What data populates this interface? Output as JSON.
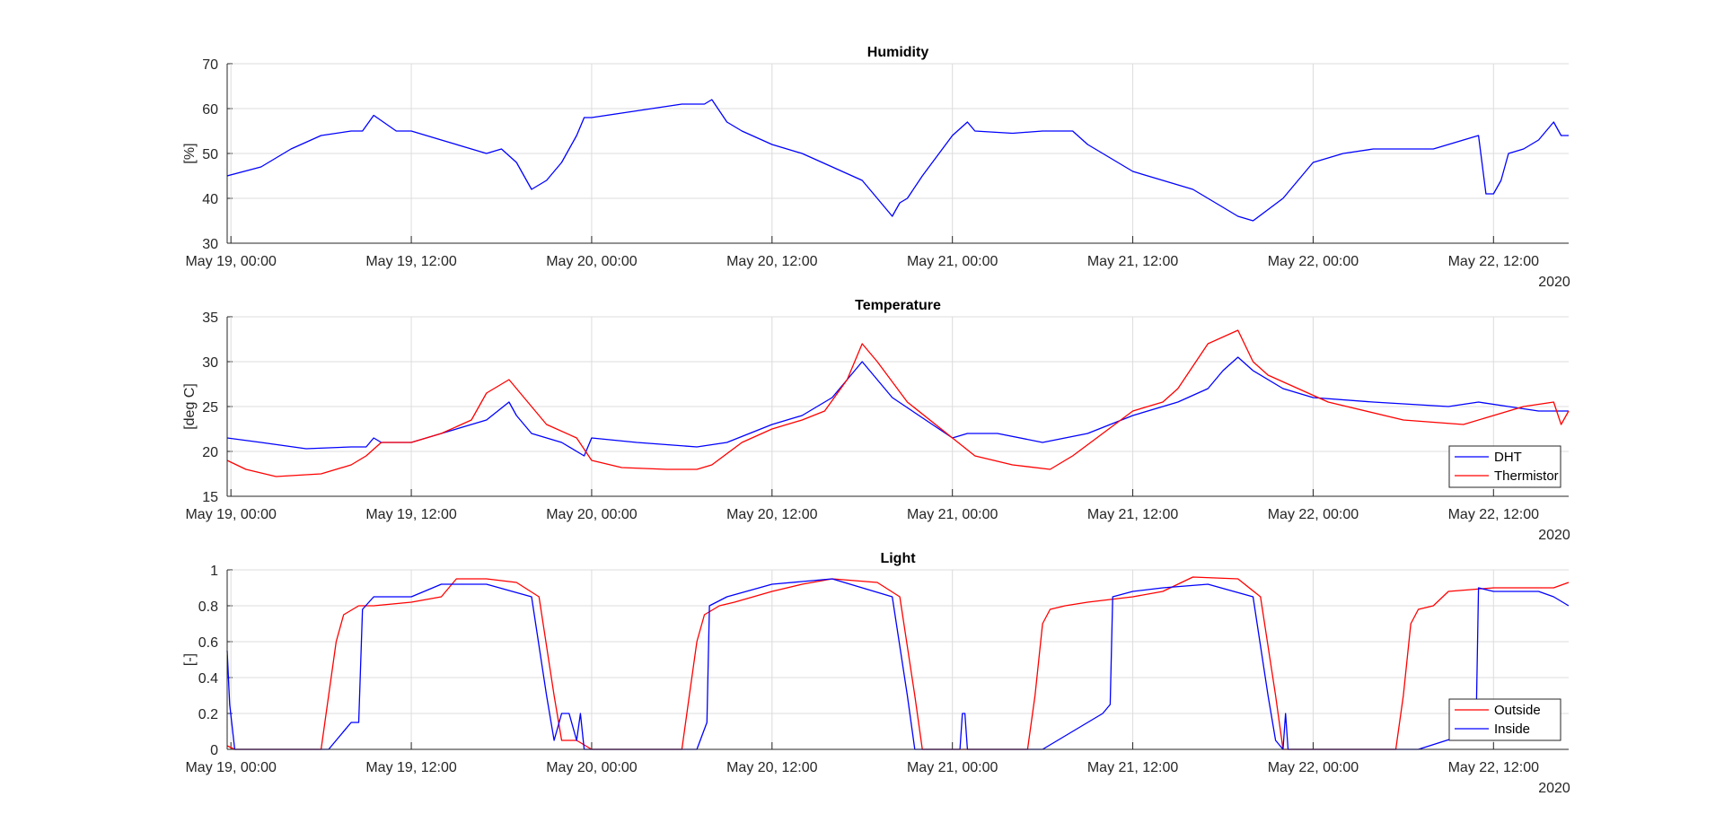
{
  "chart_data": [
    {
      "type": "line",
      "title": "Humidity",
      "ylabel": "[%]",
      "ylim": [
        30,
        70
      ],
      "yticks": [
        "30",
        "40",
        "50",
        "60",
        "70"
      ],
      "xlim": [
        "2020-05-18T23:45",
        "2020-05-22T17:00"
      ],
      "x_tick_labels": [
        "May 19, 00:00",
        "May 19, 12:00",
        "May 20, 00:00",
        "May 20, 12:00",
        "May 21, 00:00",
        "May 21, 12:00",
        "May 22, 00:00",
        "May 22, 12:00"
      ],
      "x_year_label": "2020",
      "grid": true,
      "legend": null,
      "series": [
        {
          "color": "#0000ff",
          "x": [
            "2020-05-18T23:45",
            "2020-05-19T02:00",
            "2020-05-19T04:00",
            "2020-05-19T06:00",
            "2020-05-19T08:00",
            "2020-05-19T08:45",
            "2020-05-19T09:30",
            "2020-05-19T11:00",
            "2020-05-19T12:00",
            "2020-05-19T14:00",
            "2020-05-19T16:00",
            "2020-05-19T17:00",
            "2020-05-19T18:00",
            "2020-05-19T19:00",
            "2020-05-19T20:00",
            "2020-05-19T21:00",
            "2020-05-19T22:00",
            "2020-05-19T23:00",
            "2020-05-19T23:30",
            "2020-05-20T00:00",
            "2020-05-20T02:00",
            "2020-05-20T04:00",
            "2020-05-20T06:00",
            "2020-05-20T07:30",
            "2020-05-20T08:00",
            "2020-05-20T09:00",
            "2020-05-20T10:00",
            "2020-05-20T12:00",
            "2020-05-20T14:00",
            "2020-05-20T16:00",
            "2020-05-20T18:00",
            "2020-05-20T19:00",
            "2020-05-20T20:00",
            "2020-05-20T20:30",
            "2020-05-20T21:00",
            "2020-05-20T22:00",
            "2020-05-21T00:00",
            "2020-05-21T01:00",
            "2020-05-21T01:30",
            "2020-05-21T04:00",
            "2020-05-21T06:00",
            "2020-05-21T08:00",
            "2020-05-21T09:00",
            "2020-05-21T10:00",
            "2020-05-21T12:00",
            "2020-05-21T14:00",
            "2020-05-21T16:00",
            "2020-05-21T18:00",
            "2020-05-21T19:00",
            "2020-05-21T20:00",
            "2020-05-21T22:00",
            "2020-05-22T00:00",
            "2020-05-22T02:00",
            "2020-05-22T04:00",
            "2020-05-22T06:00",
            "2020-05-22T08:00",
            "2020-05-22T10:00",
            "2020-05-22T11:00",
            "2020-05-22T11:30",
            "2020-05-22T12:00",
            "2020-05-22T12:30",
            "2020-05-22T13:00",
            "2020-05-22T14:00",
            "2020-05-22T15:00",
            "2020-05-22T16:00",
            "2020-05-22T16:30",
            "2020-05-22T17:00"
          ],
          "y": [
            45,
            47,
            51,
            54,
            55,
            55,
            58.5,
            55,
            55,
            53,
            51,
            50,
            51,
            48,
            42,
            44,
            48,
            54,
            58,
            58,
            59,
            60,
            61,
            61,
            62,
            57,
            55,
            52,
            50,
            47,
            44,
            40,
            36,
            39,
            40,
            45,
            54,
            57,
            55,
            54.5,
            55,
            55,
            52,
            50,
            46,
            44,
            42,
            38,
            36,
            35,
            40,
            48,
            50,
            51,
            51,
            51,
            53,
            54,
            41,
            41,
            44,
            50,
            51,
            53,
            57,
            54,
            54
          ]
        }
      ]
    },
    {
      "type": "line",
      "title": "Temperature",
      "ylabel": "[deg C]",
      "ylim": [
        15,
        35
      ],
      "yticks": [
        "15",
        "20",
        "25",
        "30",
        "35"
      ],
      "xlim": [
        "2020-05-18T23:45",
        "2020-05-22T17:00"
      ],
      "x_tick_labels": [
        "May 19, 00:00",
        "May 19, 12:00",
        "May 20, 00:00",
        "May 20, 12:00",
        "May 21, 00:00",
        "May 21, 12:00",
        "May 22, 00:00",
        "May 22, 12:00"
      ],
      "x_year_label": "2020",
      "grid": true,
      "legend": "bottom-right",
      "series": [
        {
          "name": "DHT",
          "color": "#0000ff",
          "x": [
            "2020-05-18T23:45",
            "2020-05-19T02:00",
            "2020-05-19T05:00",
            "2020-05-19T08:00",
            "2020-05-19T09:00",
            "2020-05-19T09:30",
            "2020-05-19T10:00",
            "2020-05-19T12:00",
            "2020-05-19T14:00",
            "2020-05-19T16:00",
            "2020-05-19T17:00",
            "2020-05-19T18:30",
            "2020-05-19T19:00",
            "2020-05-19T20:00",
            "2020-05-19T22:00",
            "2020-05-19T23:30",
            "2020-05-20T00:00",
            "2020-05-20T03:00",
            "2020-05-20T07:00",
            "2020-05-20T09:00",
            "2020-05-20T12:00",
            "2020-05-20T14:00",
            "2020-05-20T16:00",
            "2020-05-20T17:00",
            "2020-05-20T18:00",
            "2020-05-20T20:00",
            "2020-05-21T00:00",
            "2020-05-21T01:00",
            "2020-05-21T03:00",
            "2020-05-21T06:00",
            "2020-05-21T09:00",
            "2020-05-21T12:00",
            "2020-05-21T15:00",
            "2020-05-21T17:00",
            "2020-05-21T18:00",
            "2020-05-21T19:00",
            "2020-05-21T20:00",
            "2020-05-21T22:00",
            "2020-05-22T00:00",
            "2020-05-22T04:00",
            "2020-05-22T09:00",
            "2020-05-22T11:00",
            "2020-05-22T13:00",
            "2020-05-22T15:00",
            "2020-05-22T17:00"
          ],
          "y": [
            21.5,
            21,
            20.3,
            20.5,
            20.5,
            21.5,
            21,
            21,
            22,
            23,
            23.5,
            25.5,
            24,
            22,
            21,
            19.5,
            21.5,
            21,
            20.5,
            21,
            23,
            24,
            26,
            28,
            30,
            26,
            21.5,
            22,
            22,
            21,
            22,
            24,
            25.5,
            27,
            29,
            30.5,
            29,
            27,
            26,
            25.5,
            25,
            25.5,
            25,
            24.5,
            24.5
          ]
        },
        {
          "name": "Thermistor",
          "color": "#ff0000",
          "x": [
            "2020-05-18T23:45",
            "2020-05-19T01:00",
            "2020-05-19T03:00",
            "2020-05-19T06:00",
            "2020-05-19T08:00",
            "2020-05-19T09:00",
            "2020-05-19T10:00",
            "2020-05-19T12:00",
            "2020-05-19T14:00",
            "2020-05-19T16:00",
            "2020-05-19T17:00",
            "2020-05-19T18:30",
            "2020-05-19T19:30",
            "2020-05-19T21:00",
            "2020-05-19T23:00",
            "2020-05-20T00:00",
            "2020-05-20T02:00",
            "2020-05-20T05:00",
            "2020-05-20T07:00",
            "2020-05-20T08:00",
            "2020-05-20T10:00",
            "2020-05-20T12:00",
            "2020-05-20T14:00",
            "2020-05-20T15:30",
            "2020-05-20T17:00",
            "2020-05-20T18:00",
            "2020-05-20T19:00",
            "2020-05-20T21:00",
            "2020-05-21T00:00",
            "2020-05-21T01:30",
            "2020-05-21T04:00",
            "2020-05-21T06:30",
            "2020-05-21T08:00",
            "2020-05-21T10:00",
            "2020-05-21T12:00",
            "2020-05-21T14:00",
            "2020-05-21T15:00",
            "2020-05-21T17:00",
            "2020-05-21T19:00",
            "2020-05-21T20:00",
            "2020-05-21T21:00",
            "2020-05-21T23:00",
            "2020-05-22T01:00",
            "2020-05-22T06:00",
            "2020-05-22T10:00",
            "2020-05-22T12:00",
            "2020-05-22T14:00",
            "2020-05-22T16:00",
            "2020-05-22T16:30",
            "2020-05-22T17:00"
          ],
          "y": [
            19,
            18,
            17.2,
            17.5,
            18.5,
            19.5,
            21,
            21,
            22,
            23.5,
            26.5,
            28,
            26,
            23,
            21.5,
            19,
            18.2,
            18,
            18,
            18.5,
            21,
            22.5,
            23.5,
            24.5,
            28,
            32,
            30,
            25.5,
            21.5,
            19.5,
            18.5,
            18,
            19.5,
            22,
            24.5,
            25.5,
            27,
            32,
            33.5,
            30,
            28.5,
            27,
            25.5,
            23.5,
            23,
            24,
            25,
            25.5,
            23,
            24.5
          ]
        }
      ]
    },
    {
      "type": "line",
      "title": "Light",
      "ylabel": "[-]",
      "ylim": [
        0,
        1
      ],
      "yticks": [
        "0",
        "0.2",
        "0.4",
        "0.6",
        "0.8",
        "1"
      ],
      "xlim": [
        "2020-05-18T23:45",
        "2020-05-22T17:00"
      ],
      "x_tick_labels": [
        "May 19, 00:00",
        "May 19, 12:00",
        "May 20, 00:00",
        "May 20, 12:00",
        "May 21, 00:00",
        "May 21, 12:00",
        "May 22, 00:00",
        "May 22, 12:00"
      ],
      "x_year_label": "2020",
      "grid": true,
      "legend": "bottom-right",
      "series": [
        {
          "name": "Outside",
          "color": "#ff0000",
          "x": [
            "2020-05-18T23:45",
            "2020-05-19T00:15",
            "2020-05-19T06:00",
            "2020-05-19T06:30",
            "2020-05-19T07:00",
            "2020-05-19T07:30",
            "2020-05-19T08:30",
            "2020-05-19T09:30",
            "2020-05-19T12:00",
            "2020-05-19T14:00",
            "2020-05-19T15:00",
            "2020-05-19T17:00",
            "2020-05-19T19:00",
            "2020-05-19T20:30",
            "2020-05-19T21:30",
            "2020-05-19T22:00",
            "2020-05-19T23:00",
            "2020-05-20T00:00",
            "2020-05-20T06:00",
            "2020-05-20T06:30",
            "2020-05-20T07:00",
            "2020-05-20T07:30",
            "2020-05-20T08:30",
            "2020-05-20T09:30",
            "2020-05-20T12:00",
            "2020-05-20T14:00",
            "2020-05-20T16:00",
            "2020-05-20T19:00",
            "2020-05-20T20:30",
            "2020-05-20T21:30",
            "2020-05-20T22:00",
            "2020-05-21T00:00",
            "2020-05-21T05:00",
            "2020-05-21T05:30",
            "2020-05-21T06:00",
            "2020-05-21T06:30",
            "2020-05-21T07:30",
            "2020-05-21T09:00",
            "2020-05-21T12:00",
            "2020-05-21T14:00",
            "2020-05-21T16:00",
            "2020-05-21T19:00",
            "2020-05-21T20:30",
            "2020-05-21T21:30",
            "2020-05-21T22:00",
            "2020-05-22T00:00",
            "2020-05-22T05:30",
            "2020-05-22T06:00",
            "2020-05-22T06:30",
            "2020-05-22T07:00",
            "2020-05-22T08:00",
            "2020-05-22T09:00",
            "2020-05-22T12:00",
            "2020-05-22T14:00",
            "2020-05-22T16:00",
            "2020-05-22T17:00"
          ],
          "y": [
            0.02,
            0,
            0,
            0.3,
            0.6,
            0.75,
            0.8,
            0.8,
            0.82,
            0.85,
            0.95,
            0.95,
            0.93,
            0.85,
            0.3,
            0.05,
            0.05,
            0,
            0,
            0.3,
            0.6,
            0.75,
            0.8,
            0.82,
            0.88,
            0.92,
            0.95,
            0.93,
            0.85,
            0.3,
            0,
            0,
            0,
            0.3,
            0.7,
            0.78,
            0.8,
            0.82,
            0.85,
            0.88,
            0.96,
            0.95,
            0.85,
            0.3,
            0,
            0,
            0,
            0.3,
            0.7,
            0.78,
            0.8,
            0.88,
            0.9,
            0.9,
            0.9,
            0.93
          ]
        },
        {
          "name": "Inside",
          "color": "#0000ff",
          "x": [
            "2020-05-18T23:45",
            "2020-05-18T23:55",
            "2020-05-19T00:15",
            "2020-05-19T06:30",
            "2020-05-19T08:00",
            "2020-05-19T08:30",
            "2020-05-19T08:45",
            "2020-05-19T09:30",
            "2020-05-19T12:00",
            "2020-05-19T14:00",
            "2020-05-19T17:00",
            "2020-05-19T20:00",
            "2020-05-19T21:00",
            "2020-05-19T21:30",
            "2020-05-19T22:00",
            "2020-05-19T22:30",
            "2020-05-19T23:00",
            "2020-05-19T23:15",
            "2020-05-19T23:30",
            "2020-05-20T07:00",
            "2020-05-20T07:40",
            "2020-05-20T07:50",
            "2020-05-20T09:00",
            "2020-05-20T12:00",
            "2020-05-20T16:00",
            "2020-05-20T20:00",
            "2020-05-20T21:00",
            "2020-05-20T21:30",
            "2020-05-20T22:00",
            "2020-05-21T00:30",
            "2020-05-21T00:40",
            "2020-05-21T00:50",
            "2020-05-21T01:00",
            "2020-05-21T06:00",
            "2020-05-21T08:00",
            "2020-05-21T10:00",
            "2020-05-21T10:30",
            "2020-05-21T10:40",
            "2020-05-21T12:00",
            "2020-05-21T14:00",
            "2020-05-21T17:00",
            "2020-05-21T20:00",
            "2020-05-21T21:00",
            "2020-05-21T21:30",
            "2020-05-21T22:00",
            "2020-05-21T22:10",
            "2020-05-21T22:20",
            "2020-05-22T00:00",
            "2020-05-22T07:00",
            "2020-05-22T10:00",
            "2020-05-22T10:50",
            "2020-05-22T11:00",
            "2020-05-22T12:00",
            "2020-05-22T15:00",
            "2020-05-22T16:00",
            "2020-05-22T17:00"
          ],
          "y": [
            0.55,
            0.25,
            0,
            0,
            0.15,
            0.15,
            0.78,
            0.85,
            0.85,
            0.92,
            0.92,
            0.85,
            0.3,
            0.05,
            0.2,
            0.2,
            0.05,
            0.2,
            0,
            0,
            0.15,
            0.8,
            0.85,
            0.92,
            0.95,
            0.85,
            0.3,
            0,
            0,
            0,
            0.2,
            0.2,
            0,
            0,
            0.1,
            0.2,
            0.25,
            0.85,
            0.88,
            0.9,
            0.92,
            0.85,
            0.3,
            0.05,
            0,
            0.2,
            0,
            0,
            0,
            0.08,
            0.1,
            0.9,
            0.88,
            0.88,
            0.85,
            0.8
          ]
        }
      ]
    }
  ]
}
